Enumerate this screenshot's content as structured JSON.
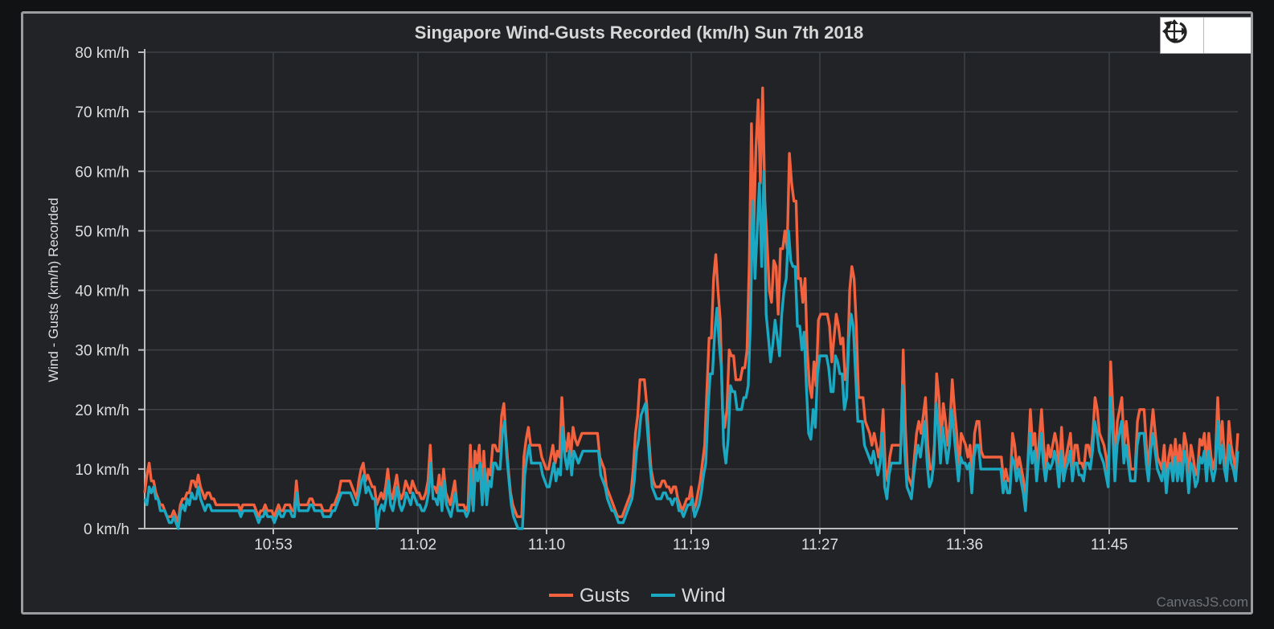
{
  "chart_data": {
    "type": "line",
    "title": "Singapore Wind-Gusts Recorded (km/h) Sun 7th 2018",
    "ylabel": "Wind - Gusts (km/h) Recorded",
    "xlabel": "",
    "x_tick_labels": [
      "10:53",
      "11:02",
      "11:10",
      "11:19",
      "11:27",
      "11:36",
      "11:45"
    ],
    "x_tick_minutes": [
      653,
      662,
      670,
      679,
      687,
      696,
      705
    ],
    "x_range_minutes": [
      645,
      713
    ],
    "y_tick_labels": [
      "0 km/h",
      "10 km/h",
      "20 km/h",
      "30 km/h",
      "40 km/h",
      "50 km/h",
      "60 km/h",
      "70 km/h",
      "80 km/h"
    ],
    "ylim": [
      0,
      80
    ],
    "grid": true,
    "legend_position": "bottom-center",
    "series": [
      {
        "name": "Gusts",
        "color": "#f2623e",
        "x_start_minutes": 645,
        "x_end_minutes": 713,
        "values": [
          6,
          9,
          11,
          8,
          8,
          6,
          5,
          4,
          4,
          3,
          2,
          2,
          2,
          3,
          2,
          1,
          4,
          5,
          5,
          6,
          6,
          8,
          8,
          7,
          9,
          7,
          6,
          5,
          6,
          6,
          5,
          5,
          4,
          4,
          4,
          4,
          4,
          4,
          4,
          4,
          4,
          4,
          4,
          3,
          4,
          4,
          4,
          4,
          4,
          4,
          3,
          2,
          3,
          3,
          4,
          3,
          3,
          3,
          2,
          3,
          4,
          3,
          3,
          4,
          4,
          4,
          3,
          3,
          8,
          4,
          4,
          4,
          4,
          4,
          5,
          5,
          4,
          4,
          4,
          4,
          3,
          3,
          3,
          3,
          4,
          4,
          5,
          6,
          8,
          8,
          8,
          8,
          8,
          7,
          6,
          5,
          8,
          10,
          11,
          8,
          9,
          8,
          7,
          7,
          4,
          5,
          6,
          5,
          7,
          10,
          6,
          5,
          7,
          9,
          6,
          5,
          6,
          8,
          7,
          6,
          8,
          7,
          6,
          6,
          5,
          5,
          6,
          8,
          14,
          7,
          7,
          6,
          9,
          5,
          10,
          6,
          5,
          4,
          6,
          8,
          4,
          4,
          4,
          4,
          3,
          4,
          14,
          4,
          13,
          11,
          14,
          6,
          13,
          6,
          10,
          9,
          14,
          14,
          13,
          13,
          19,
          21,
          15,
          10,
          6,
          4,
          3,
          2,
          2,
          2,
          12,
          15,
          17,
          14,
          14,
          14,
          14,
          14,
          12,
          11,
          10,
          10,
          12,
          14,
          11,
          13,
          12,
          22,
          15,
          13,
          16,
          12,
          17,
          15,
          14,
          15,
          16,
          16,
          16,
          16,
          16,
          16,
          16,
          16,
          12,
          11,
          10,
          7,
          6,
          5,
          4,
          3,
          2,
          2,
          2,
          3,
          4,
          5,
          6,
          10,
          16,
          19,
          25,
          25,
          25,
          21,
          15,
          10,
          8,
          7,
          7,
          7,
          8,
          8,
          7,
          7,
          6,
          7,
          7,
          5,
          4,
          3,
          4,
          5,
          5,
          7,
          3,
          4,
          6,
          8,
          11,
          14,
          23,
          32,
          32,
          42,
          46,
          40,
          35,
          20,
          17,
          20,
          30,
          29,
          29,
          25,
          25,
          25,
          27,
          27,
          30,
          45,
          68,
          50,
          64,
          72,
          58,
          74,
          55,
          48,
          40,
          38,
          45,
          44,
          36,
          47,
          47,
          50,
          47,
          63,
          58,
          55,
          55,
          42,
          42,
          38,
          42,
          30,
          24,
          22,
          28,
          24,
          35,
          36,
          36,
          36,
          36,
          34,
          28,
          32,
          36,
          34,
          31,
          32,
          25,
          27,
          40,
          44,
          42,
          34,
          22,
          22,
          22,
          18,
          17,
          16,
          14,
          16,
          14,
          12,
          14,
          20,
          10,
          8,
          12,
          14,
          14,
          14,
          14,
          14,
          30,
          17,
          9,
          8,
          7,
          12,
          16,
          18,
          16,
          19,
          22,
          14,
          10,
          10,
          14,
          26,
          22,
          14,
          21,
          18,
          14,
          18,
          25,
          20,
          16,
          10,
          16,
          15,
          14,
          12,
          14,
          8,
          16,
          18,
          18,
          13,
          12,
          12,
          12,
          12,
          12,
          12,
          12,
          12,
          12,
          8,
          10,
          8,
          8,
          16,
          14,
          10,
          12,
          10,
          8,
          4,
          12,
          20,
          14,
          16,
          10,
          15,
          20,
          14,
          10,
          14,
          12,
          14,
          16,
          14,
          9,
          17,
          10,
          12,
          14,
          16,
          10,
          14,
          14,
          11,
          11,
          10,
          14,
          14,
          12,
          16,
          22,
          20,
          16,
          15,
          14,
          12,
          9,
          28,
          20,
          10,
          18,
          20,
          22,
          14,
          18,
          14,
          10,
          10,
          10,
          18,
          20,
          20,
          20,
          14,
          10,
          16,
          20,
          16,
          12,
          11,
          10,
          14,
          8,
          12,
          14,
          10,
          15,
          10,
          14,
          10,
          16,
          14,
          8,
          14,
          12,
          9,
          10,
          15,
          14,
          16,
          10,
          16,
          12,
          10,
          12,
          22,
          14,
          18,
          12,
          10,
          18,
          14,
          12,
          10,
          16
        ]
      },
      {
        "name": "Wind",
        "color": "#1aa8c2",
        "x_start_minutes": 645,
        "x_end_minutes": 713,
        "values": [
          5,
          4,
          7,
          6,
          7,
          5,
          5,
          3,
          3,
          3,
          2,
          1,
          1,
          2,
          1,
          0,
          3,
          4,
          3,
          5,
          4,
          6,
          5,
          5,
          7,
          5,
          4,
          3,
          4,
          4,
          3,
          3,
          3,
          3,
          3,
          3,
          3,
          3,
          3,
          3,
          3,
          3,
          3,
          2,
          3,
          3,
          3,
          3,
          3,
          3,
          2,
          1,
          2,
          2,
          3,
          2,
          2,
          2,
          1,
          2,
          3,
          2,
          2,
          3,
          3,
          3,
          2,
          2,
          6,
          3,
          3,
          3,
          3,
          3,
          4,
          4,
          3,
          3,
          3,
          3,
          2,
          2,
          2,
          2,
          3,
          3,
          4,
          5,
          6,
          6,
          6,
          6,
          6,
          5,
          4,
          4,
          6,
          8,
          9,
          6,
          7,
          6,
          5,
          5,
          0,
          3,
          4,
          3,
          5,
          8,
          4,
          3,
          5,
          7,
          4,
          3,
          4,
          6,
          5,
          4,
          6,
          5,
          4,
          4,
          3,
          3,
          4,
          6,
          11,
          5,
          5,
          4,
          7,
          3,
          8,
          4,
          3,
          2,
          4,
          6,
          3,
          3,
          3,
          3,
          2,
          3,
          10,
          3,
          10,
          8,
          11,
          4,
          10,
          4,
          8,
          7,
          11,
          11,
          10,
          10,
          16,
          18,
          12,
          8,
          4,
          2,
          1,
          0,
          0,
          0,
          9,
          12,
          14,
          11,
          11,
          11,
          11,
          11,
          9,
          8,
          7,
          7,
          9,
          11,
          8,
          10,
          9,
          17,
          12,
          10,
          13,
          9,
          13,
          12,
          11,
          12,
          13,
          13,
          13,
          13,
          13,
          13,
          13,
          13,
          9,
          8,
          7,
          5,
          4,
          3,
          3,
          2,
          1,
          1,
          1,
          2,
          3,
          4,
          5,
          8,
          13,
          15,
          19,
          20,
          21,
          16,
          11,
          7,
          6,
          5,
          5,
          5,
          6,
          6,
          5,
          5,
          4,
          5,
          5,
          3,
          3,
          2,
          3,
          4,
          4,
          5,
          2,
          3,
          4,
          6,
          9,
          11,
          20,
          26,
          26,
          33,
          37,
          31,
          27,
          14,
          11,
          15,
          24,
          23,
          23,
          20,
          20,
          20,
          22,
          22,
          24,
          35,
          55,
          42,
          50,
          58,
          44,
          60,
          36,
          32,
          28,
          31,
          35,
          32,
          29,
          36,
          40,
          42,
          50,
          45,
          44,
          44,
          34,
          34,
          30,
          33,
          24,
          16,
          15,
          20,
          17,
          26,
          29,
          29,
          29,
          29,
          27,
          23,
          23,
          29,
          28,
          26,
          26,
          20,
          22,
          32,
          36,
          34,
          26,
          18,
          18,
          18,
          14,
          13,
          12,
          11,
          13,
          11,
          9,
          11,
          16,
          7,
          5,
          9,
          11,
          11,
          11,
          11,
          11,
          24,
          13,
          7,
          6,
          5,
          9,
          12,
          14,
          12,
          15,
          18,
          11,
          7,
          8,
          11,
          21,
          17,
          11,
          17,
          14,
          11,
          14,
          20,
          16,
          12,
          8,
          12,
          11,
          11,
          10,
          11,
          6,
          12,
          14,
          14,
          10,
          10,
          10,
          10,
          10,
          10,
          10,
          10,
          10,
          10,
          6,
          8,
          6,
          6,
          12,
          11,
          8,
          10,
          8,
          6,
          3,
          10,
          16,
          11,
          13,
          8,
          12,
          16,
          11,
          8,
          11,
          10,
          11,
          13,
          11,
          7,
          13,
          8,
          10,
          11,
          13,
          8,
          11,
          11,
          9,
          9,
          8,
          11,
          11,
          10,
          13,
          18,
          16,
          13,
          12,
          11,
          9,
          7,
          22,
          16,
          8,
          14,
          16,
          18,
          11,
          14,
          11,
          8,
          8,
          8,
          14,
          16,
          16,
          16,
          11,
          8,
          13,
          16,
          13,
          10,
          9,
          8,
          11,
          6,
          10,
          11,
          8,
          12,
          8,
          11,
          8,
          13,
          11,
          6,
          11,
          10,
          7,
          8,
          12,
          11,
          13,
          8,
          13,
          10,
          8,
          10,
          18,
          11,
          14,
          10,
          8,
          14,
          11,
          10,
          8,
          13
        ]
      }
    ]
  },
  "credit": "CanvasJS.com",
  "toolbar": {
    "pan_icon": "move-icon",
    "reset_icon": "reset-icon"
  }
}
